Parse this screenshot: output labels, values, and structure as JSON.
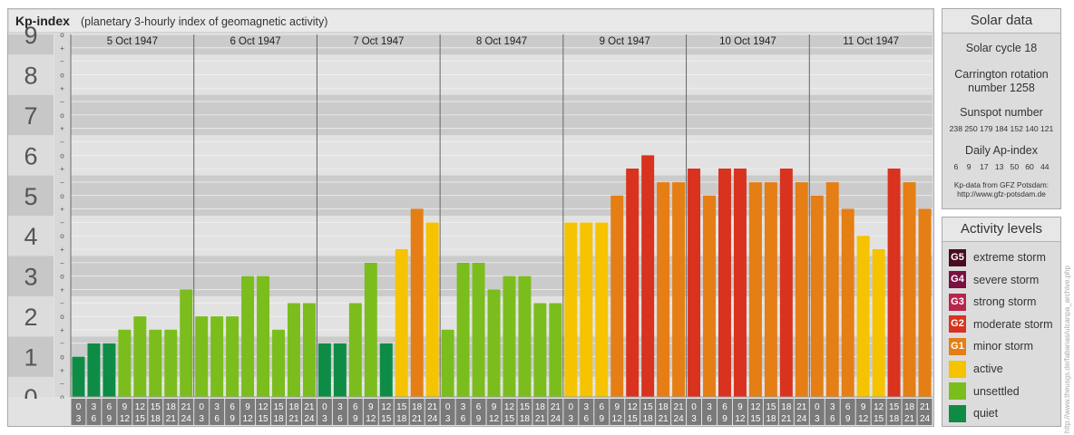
{
  "title": "Kp-index",
  "subtitle": "(planetary 3-hourly index of geomagnetic activity)",
  "chart_data": {
    "type": "bar",
    "title": "Kp-index",
    "subtitle": "(planetary 3-hourly index of geomagnetic activity)",
    "ylim": [
      0,
      9
    ],
    "y_ticks": [
      "0",
      "1",
      "2",
      "3",
      "4",
      "5",
      "6",
      "7",
      "8",
      "9"
    ],
    "sub_ticks": [
      "+",
      "o",
      "−"
    ],
    "days": [
      {
        "date": "5 Oct 1947",
        "values": [
          1.0,
          1.33,
          1.33,
          1.67,
          2.0,
          1.67,
          1.67,
          2.67
        ]
      },
      {
        "date": "6 Oct 1947",
        "values": [
          2.0,
          2.0,
          2.0,
          3.0,
          3.0,
          1.67,
          2.33,
          2.33
        ]
      },
      {
        "date": "7 Oct 1947",
        "values": [
          1.33,
          1.33,
          2.33,
          3.33,
          1.33,
          3.67,
          4.67,
          4.33
        ]
      },
      {
        "date": "8 Oct 1947",
        "values": [
          1.67,
          3.33,
          3.33,
          2.67,
          3.0,
          3.0,
          2.33,
          2.33
        ]
      },
      {
        "date": "9 Oct 1947",
        "values": [
          4.33,
          4.33,
          4.33,
          5.0,
          5.67,
          6.0,
          5.33,
          5.33
        ]
      },
      {
        "date": "10 Oct 1947",
        "values": [
          5.67,
          5.0,
          5.67,
          5.67,
          5.33,
          5.33,
          5.67,
          5.33
        ]
      },
      {
        "date": "11 Oct 1947",
        "values": [
          5.0,
          5.33,
          4.67,
          4.0,
          3.67,
          5.67,
          5.33,
          4.67
        ]
      }
    ],
    "hour_labels": [
      [
        "0",
        "3"
      ],
      [
        "3",
        "6"
      ],
      [
        "6",
        "9"
      ],
      [
        "9",
        "12"
      ],
      [
        "12",
        "15"
      ],
      [
        "15",
        "18"
      ],
      [
        "18",
        "21"
      ],
      [
        "21",
        "24"
      ]
    ],
    "color_scale": [
      {
        "max": 1.5,
        "color": "#0e8c45"
      },
      {
        "max": 3.5,
        "color": "#7bbd1c"
      },
      {
        "max": 4.5,
        "color": "#f5c300"
      },
      {
        "max": 5.5,
        "color": "#e47e15"
      },
      {
        "max": 6.5,
        "color": "#d9321e"
      },
      {
        "max": 7.5,
        "color": "#b7254c"
      },
      {
        "max": 8.5,
        "color": "#7b1140"
      },
      {
        "max": 99,
        "color": "#4a0a22"
      }
    ],
    "grid": true
  },
  "solar": {
    "title": "Solar data",
    "cycle": "Solar cycle 18",
    "carrington_line1": "Carrington rotation",
    "carrington_line2": "number 1258",
    "sunspot_title": "Sunspot number",
    "sunspot_values": "238 250 179 184 152 140 121",
    "ap_title": "Daily Ap-index",
    "ap_values": "6    9    17   13   50   60   44",
    "source_line1": "Kp-data from GFZ Potsdam:",
    "source_line2": "http://www.gfz-potsdam.de"
  },
  "activity": {
    "title": "Activity levels",
    "items": [
      {
        "code": "G5",
        "label": "extreme storm",
        "color": "#4a0a22"
      },
      {
        "code": "G4",
        "label": "severe storm",
        "color": "#7b1140"
      },
      {
        "code": "G3",
        "label": "strong storm",
        "color": "#b7254c"
      },
      {
        "code": "G2",
        "label": "moderate storm",
        "color": "#d9321e"
      },
      {
        "code": "G1",
        "label": "minor storm",
        "color": "#e47e15"
      },
      {
        "code": "",
        "label": "active",
        "color": "#f5c300"
      },
      {
        "code": "",
        "label": "unsettled",
        "color": "#7bbd1c"
      },
      {
        "code": "",
        "label": "quiet",
        "color": "#0e8c45"
      }
    ]
  },
  "watermark": "http://www.theusgs.de/fabanas/ulcanpa_archive.php"
}
